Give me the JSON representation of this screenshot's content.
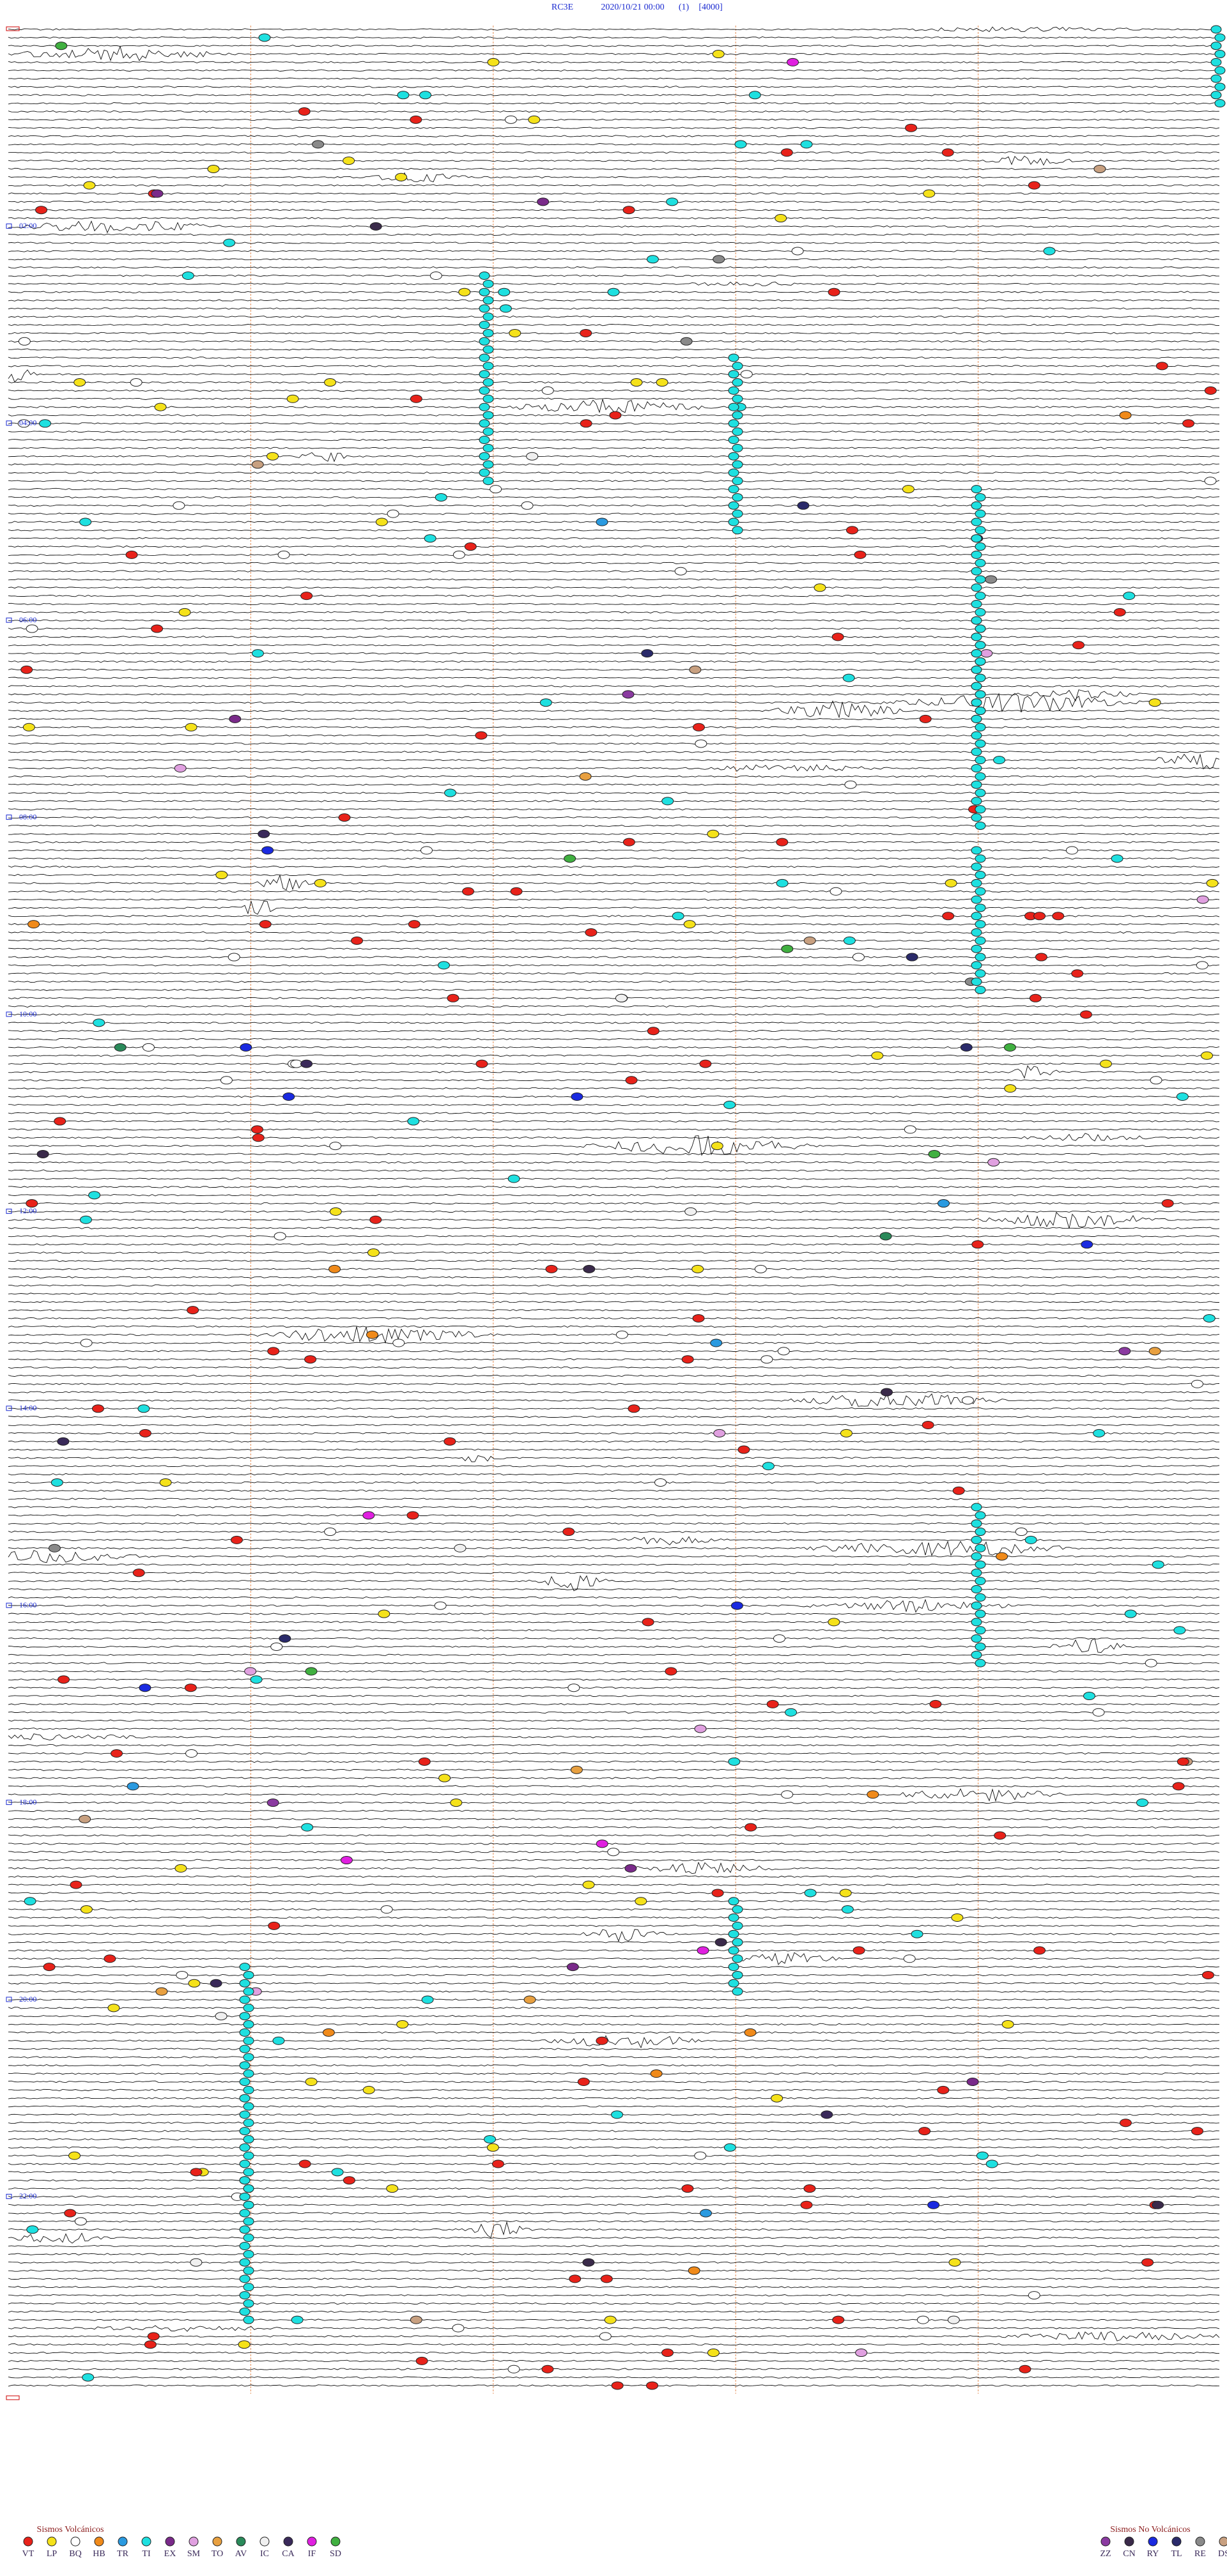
{
  "header": {
    "station": "RC3E",
    "datetime": "2020/10/21 00:00",
    "run": "(1)",
    "scale": "[4000]"
  },
  "hour_labels": [
    "02:00",
    "04:00",
    "06:00",
    "08:00",
    "10:00",
    "12:00",
    "14:00",
    "16:00",
    "18:00",
    "20:00",
    "22:00"
  ],
  "legend": {
    "volcanic": {
      "title": "Sismos Volcánicos",
      "items": [
        {
          "code": "VT",
          "color": "#e8221a"
        },
        {
          "code": "LP",
          "color": "#f5e21a"
        },
        {
          "code": "BQ",
          "color": "#ffffff"
        },
        {
          "code": "HB",
          "color": "#f08a1a"
        },
        {
          "code": "TR",
          "color": "#2a9ae0"
        },
        {
          "code": "TI",
          "color": "#1ee0e0"
        },
        {
          "code": "EX",
          "color": "#7a2a8a"
        },
        {
          "code": "SM",
          "color": "#e0a0e0"
        },
        {
          "code": "TO",
          "color": "#e8a040"
        },
        {
          "code": "AV",
          "color": "#2a8a5a"
        },
        {
          "code": "IC",
          "color": "#f0f0f0"
        },
        {
          "code": "CA",
          "color": "#3a2a5a"
        },
        {
          "code": "IF",
          "color": "#e020e0"
        },
        {
          "code": "SD",
          "color": "#40b040"
        }
      ]
    },
    "non_volcanic": {
      "title": "Sismos No Volcánicos",
      "items": [
        {
          "code": "ZZ",
          "color": "#8a3aa0"
        },
        {
          "code": "CN",
          "color": "#3a2a4a"
        },
        {
          "code": "RY",
          "color": "#1a2ae0"
        },
        {
          "code": "TL",
          "color": "#2a2a6a"
        },
        {
          "code": "RE",
          "color": "#8a8a8a"
        },
        {
          "code": "DS",
          "color": "#c8a080"
        }
      ]
    }
  }
}
